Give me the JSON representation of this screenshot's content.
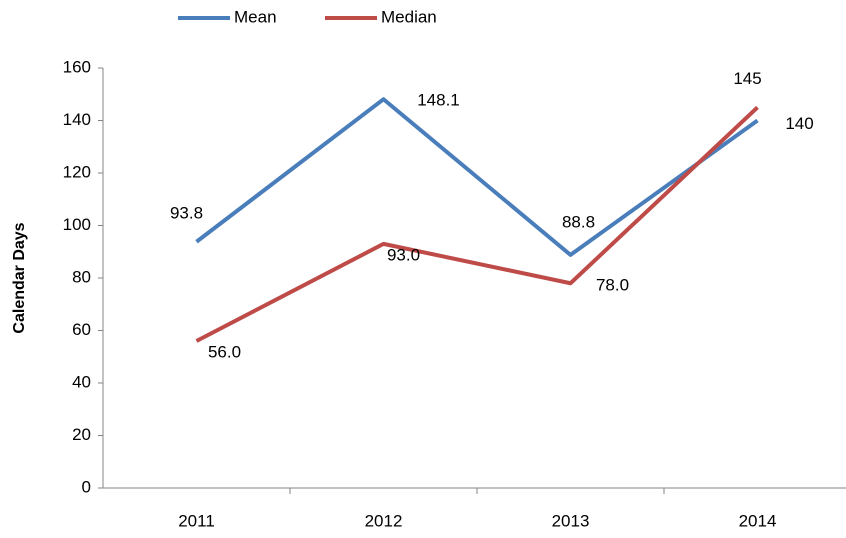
{
  "chart_data": {
    "type": "line",
    "y_label": "Calendar Days",
    "categories": [
      "2011",
      "2012",
      "2013",
      "2014"
    ],
    "series": [
      {
        "name": "Mean",
        "color": "#4a7ebb",
        "values": [
          93.8,
          148.1,
          88.8,
          140
        ],
        "value_labels": [
          "93.8",
          "148.1",
          "88.8",
          "140"
        ]
      },
      {
        "name": "Median",
        "color": "#be4b48",
        "values": [
          56,
          93,
          78,
          145
        ],
        "value_labels": [
          "56.0",
          "93.0",
          "78.0",
          "145"
        ]
      }
    ],
    "ylim": [
      0,
      160
    ],
    "yticks": [
      0,
      20,
      40,
      60,
      80,
      100,
      120,
      140,
      160
    ],
    "legend": "top"
  }
}
